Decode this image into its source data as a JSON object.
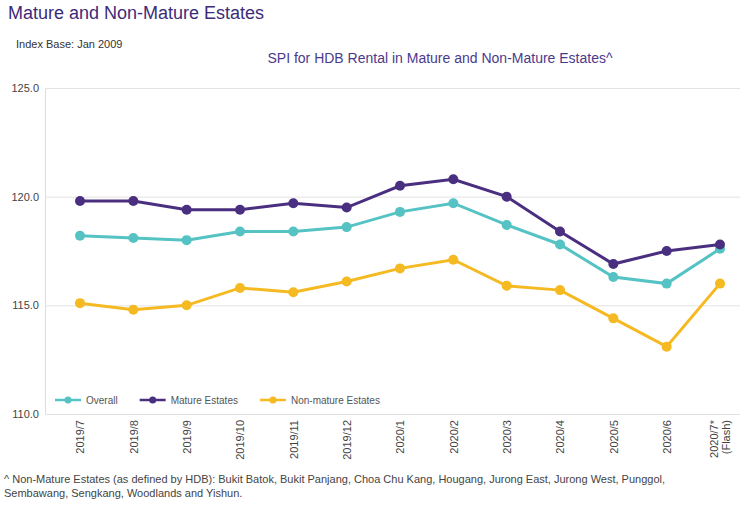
{
  "chart_data": {
    "type": "line",
    "heading": "Mature and Non-Mature Estates",
    "subtitle": "Index Base: Jan 2009",
    "title": "SPI for HDB Rental in Mature and Non-Mature Estates^",
    "categories": [
      "2019/7",
      "2019/8",
      "2019/9",
      "2019/10",
      "2019/11",
      "2019/12",
      "2020/1",
      "2020/2",
      "2020/3",
      "2020/4",
      "2020/5",
      "2020/6",
      "2020/7* (Flash)"
    ],
    "series": [
      {
        "name": "Overall",
        "color": "#55c2c4",
        "values": [
          118.2,
          118.1,
          118.0,
          118.4,
          118.4,
          118.6,
          119.3,
          119.7,
          118.7,
          117.8,
          116.3,
          116.0,
          117.6
        ]
      },
      {
        "name": "Mature Estates",
        "color": "#4a2f80",
        "values": [
          119.8,
          119.8,
          119.4,
          119.4,
          119.7,
          119.5,
          120.5,
          120.8,
          120.0,
          118.4,
          116.9,
          117.5,
          117.8
        ]
      },
      {
        "name": "Non-mature Estates",
        "color": "#f5b921",
        "values": [
          115.1,
          114.8,
          115.0,
          115.8,
          115.6,
          116.1,
          116.7,
          117.1,
          115.9,
          115.7,
          114.4,
          113.1,
          116.0
        ]
      }
    ],
    "ylim": [
      110,
      125
    ],
    "yticks": [
      {
        "value": 110,
        "label": "110.0"
      },
      {
        "value": 115,
        "label": "115.0"
      },
      {
        "value": 120,
        "label": "120.0"
      },
      {
        "value": 125,
        "label": "125.0"
      }
    ],
    "grid": true,
    "legend": "lower left",
    "marker": "circle",
    "footnote": [
      "^ Non-Mature Estates (as defined by HDB): Bukit Batok, Bukit Panjang, Choa Chu Kang, Hougang, Jurong East, Jurong West, Punggol,",
      "Sembawang, Sengkang, Woodlands and Yishun."
    ]
  }
}
